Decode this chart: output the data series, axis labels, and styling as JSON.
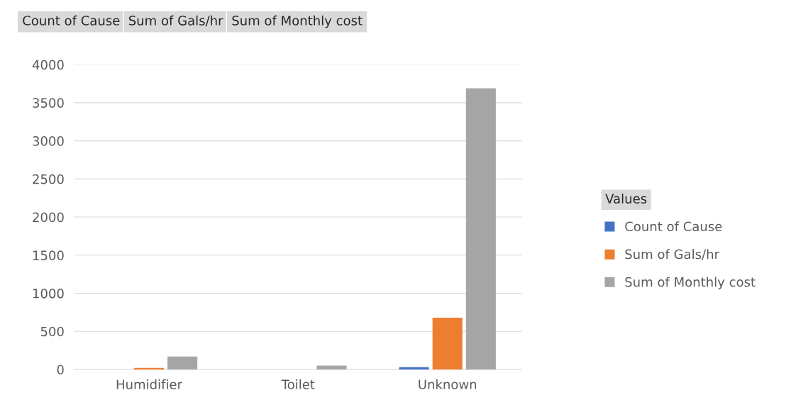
{
  "chart_data": {
    "type": "bar",
    "categories": [
      "Humidifier",
      "Toilet",
      "Unknown"
    ],
    "series": [
      {
        "name": "Count of Cause",
        "color": "#4472c4",
        "values": [
          null,
          null,
          30
        ]
      },
      {
        "name": "Sum of Gals/hr",
        "color": "#ed7d31",
        "values": [
          20,
          null,
          680
        ]
      },
      {
        "name": "Sum of Monthly cost",
        "color": "#a5a5a5",
        "values": [
          170,
          50,
          3690
        ]
      }
    ],
    "ylim": [
      0,
      4000
    ],
    "yticks": [
      0,
      500,
      1000,
      1500,
      2000,
      2500,
      3000,
      3500,
      4000
    ],
    "grid": "y",
    "legend": "right",
    "legend_title": "Values",
    "annotations": [
      "Count of Cause",
      "Sum of Gals/hr",
      "Sum of Monthly cost"
    ]
  }
}
